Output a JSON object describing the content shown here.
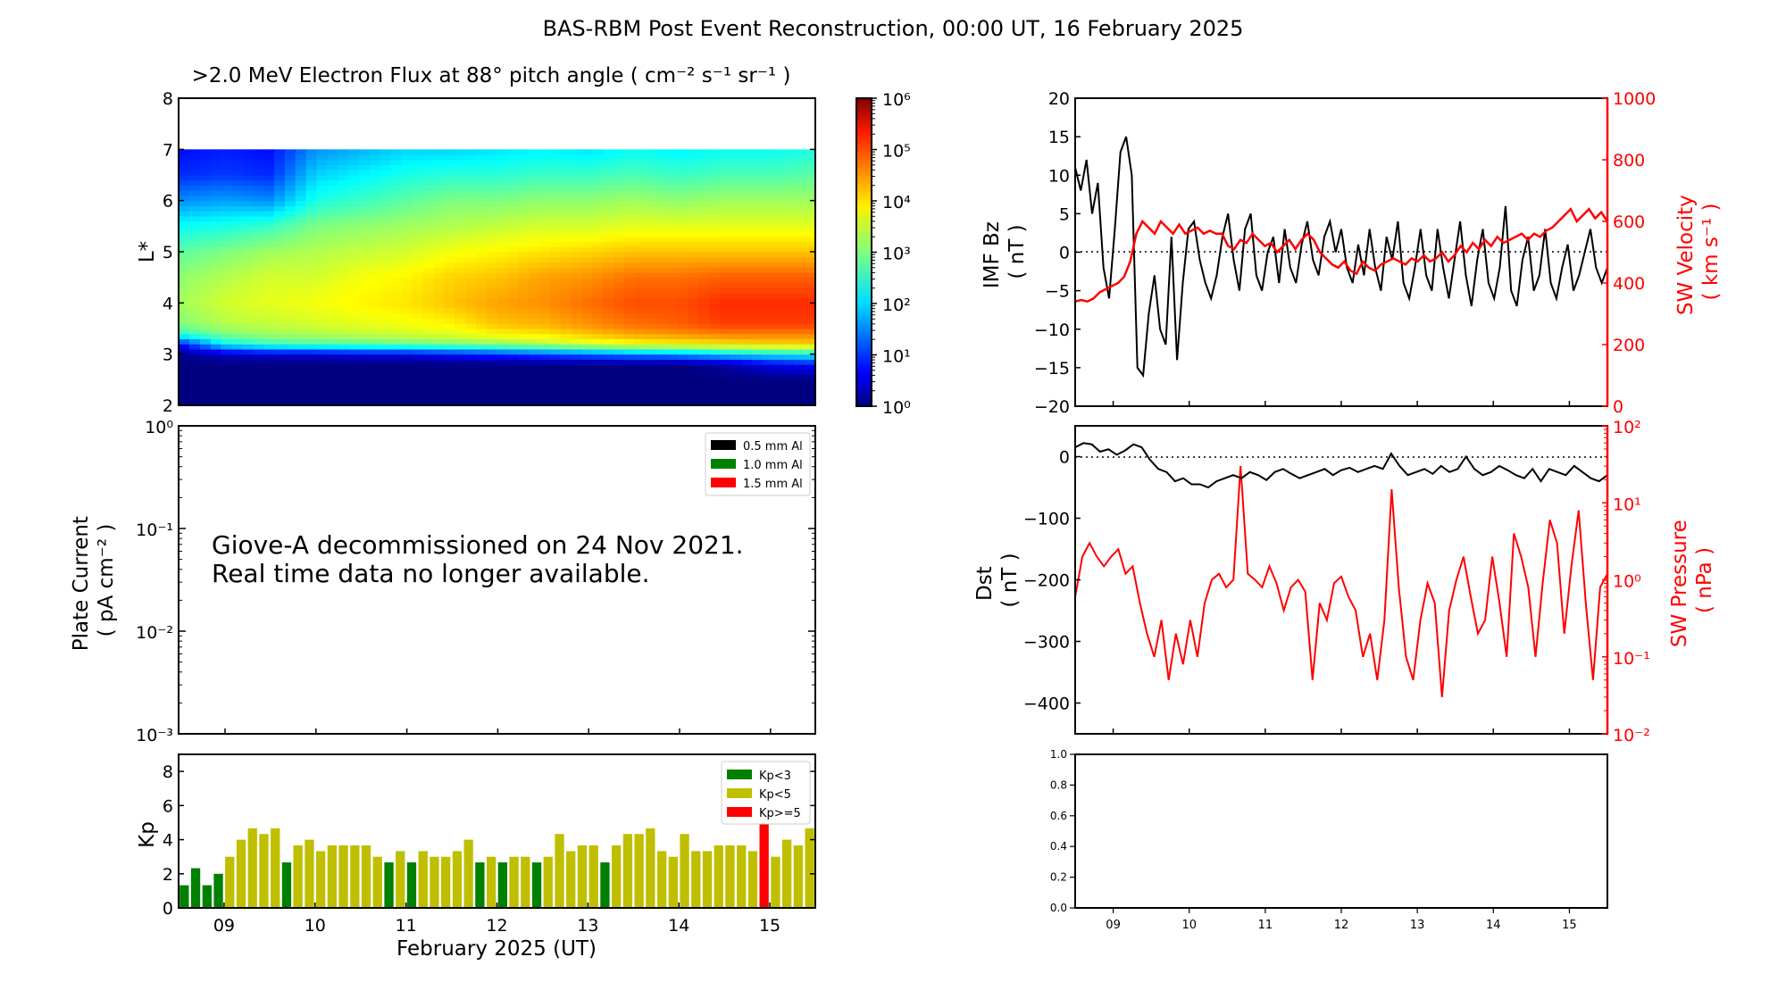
{
  "title": "BAS-RBM Post Event Reconstruction, 00:00 UT, 16 February 2025",
  "chart_data": [
    {
      "id": "flux",
      "type": "heatmap",
      "title": ">2.0 MeV Electron Flux at 88° pitch angle ( cm⁻² s⁻¹ sr⁻¹ )",
      "ylabel": "L*",
      "ylim": [
        2,
        8
      ],
      "yticks": [
        "2",
        "3",
        "4",
        "5",
        "6",
        "7",
        "8"
      ],
      "xlim": [
        "2025-02-08T12:00",
        "2025-02-15T12:00"
      ],
      "colorbar": {
        "scale": "log",
        "range": [
          1,
          1000000
        ],
        "ticks": [
          "10⁰",
          "10¹",
          "10²",
          "10³",
          "10⁴",
          "10⁵",
          "10⁶"
        ],
        "colormap": "jet"
      },
      "l_range_with_data": [
        2,
        7
      ],
      "log10_flux_grid": {
        "time_days_from_start": [
          0,
          0.5,
          1.0,
          1.5,
          2.0,
          2.5,
          3.0,
          3.5,
          4.0,
          4.5,
          5.0,
          5.5,
          6.0,
          6.5,
          7.0
        ],
        "l_star": [
          2.0,
          2.5,
          2.8,
          3.0,
          3.2,
          3.4,
          3.6,
          4.0,
          4.5,
          5.0,
          5.5,
          6.0,
          6.5,
          7.0
        ],
        "rows": [
          [
            0,
            0,
            0,
            0,
            0,
            0,
            0,
            0,
            0,
            0,
            0,
            0,
            0,
            0,
            0
          ],
          [
            0,
            0,
            0,
            0,
            0,
            0,
            0,
            0,
            0,
            0,
            0,
            0,
            0,
            0,
            0
          ],
          [
            0,
            0,
            0,
            0,
            0,
            0,
            0,
            0,
            0,
            0,
            0,
            0,
            0.2,
            0.6,
            0.8
          ],
          [
            0.1,
            0.4,
            0.5,
            0.5,
            0.6,
            0.6,
            0.8,
            1.0,
            1.2,
            1.4,
            1.6,
            1.7,
            2.0,
            2.2,
            2.3
          ],
          [
            0.8,
            2.2,
            2.6,
            2.7,
            2.8,
            2.9,
            3.0,
            3.1,
            3.3,
            3.5,
            3.7,
            3.8,
            3.9,
            4.0,
            4.0
          ],
          [
            2.5,
            3.0,
            3.2,
            3.3,
            3.4,
            3.5,
            3.6,
            3.8,
            3.9,
            4.1,
            4.3,
            4.4,
            4.5,
            4.5,
            4.5
          ],
          [
            3.0,
            3.3,
            3.4,
            3.5,
            3.6,
            3.7,
            3.8,
            4.1,
            4.2,
            4.4,
            4.6,
            4.7,
            4.9,
            4.9,
            4.9
          ],
          [
            3.2,
            3.5,
            3.6,
            3.7,
            3.8,
            3.9,
            4.1,
            4.3,
            4.4,
            4.6,
            4.8,
            4.8,
            5.0,
            5.0,
            5.0
          ],
          [
            3.1,
            3.3,
            3.5,
            3.5,
            3.7,
            3.8,
            4.0,
            4.1,
            4.3,
            4.4,
            4.6,
            4.6,
            4.7,
            4.7,
            4.7
          ],
          [
            2.8,
            3.0,
            3.2,
            3.3,
            3.4,
            3.5,
            3.7,
            3.8,
            3.9,
            4.0,
            4.1,
            4.1,
            4.1,
            4.1,
            4.1
          ],
          [
            2.3,
            2.4,
            2.6,
            3.0,
            3.1,
            3.2,
            3.3,
            3.4,
            3.5,
            3.5,
            3.6,
            3.6,
            3.6,
            3.6,
            3.6
          ],
          [
            1.6,
            1.7,
            1.6,
            2.4,
            2.6,
            2.8,
            3.0,
            3.0,
            3.1,
            3.1,
            3.2,
            3.1,
            3.2,
            3.2,
            3.2
          ],
          [
            1.0,
            1.1,
            1.0,
            2.0,
            2.2,
            2.4,
            2.5,
            2.5,
            2.6,
            2.6,
            2.7,
            2.6,
            2.7,
            2.7,
            2.8
          ],
          [
            0.8,
            0.9,
            0.8,
            1.6,
            1.8,
            2.0,
            2.0,
            2.1,
            2.2,
            2.1,
            2.3,
            2.2,
            2.3,
            2.3,
            2.4
          ]
        ]
      }
    },
    {
      "id": "plate_current",
      "type": "line",
      "ylabel": "Plate Current ( pA cm⁻² )",
      "yscale": "log",
      "ylim": [
        0.001,
        1
      ],
      "yticks": [
        "10⁰",
        "10⁻¹",
        "10⁻²",
        "10⁻³"
      ],
      "legend": {
        "placement": "top-right",
        "entries": [
          {
            "label": "0.5 mm Al",
            "color": "#000000"
          },
          {
            "label": "1.0 mm Al",
            "color": "#008000"
          },
          {
            "label": "1.5 mm Al",
            "color": "#ff0000"
          }
        ]
      },
      "annotation": [
        "Giove-A decommissioned on 24 Nov 2021.",
        "Real time data no longer available."
      ],
      "series": []
    },
    {
      "id": "kp",
      "type": "bar",
      "ylabel": "Kp",
      "xlabel": "February 2025 (UT)",
      "ylim": [
        0,
        9
      ],
      "yticks": [
        "0",
        "2",
        "4",
        "6",
        "8"
      ],
      "xticks": [
        "09",
        "10",
        "11",
        "12",
        "13",
        "14",
        "15"
      ],
      "bar_interval_hours": 3,
      "legend": {
        "placement": "top-right",
        "entries": [
          {
            "label": "Kp<3",
            "color": "#008000"
          },
          {
            "label": "Kp<5",
            "color": "#bfbf00"
          },
          {
            "label": "Kp>=5",
            "color": "#ff0000"
          }
        ]
      },
      "values": [
        1.33,
        2.33,
        1.33,
        2.0,
        3.0,
        4.0,
        4.67,
        4.33,
        4.67,
        2.67,
        3.67,
        4.0,
        3.33,
        3.67,
        3.67,
        3.67,
        3.67,
        3.0,
        2.67,
        3.33,
        2.67,
        3.33,
        3.0,
        3.0,
        3.33,
        4.0,
        2.67,
        3.0,
        2.67,
        3.0,
        3.0,
        2.67,
        3.0,
        4.33,
        3.33,
        3.67,
        3.67,
        2.67,
        3.67,
        4.33,
        4.33,
        4.67,
        3.33,
        3.0,
        4.33,
        3.33,
        3.33,
        3.67,
        3.67,
        3.67,
        3.33,
        5.0,
        3.0,
        4.0,
        3.67,
        4.67
      ]
    },
    {
      "id": "imf_sw",
      "type": "line",
      "ylabel": "IMF Bz ( nT )",
      "ylim": [
        -20,
        20
      ],
      "yticks": [
        "20",
        "15",
        "10",
        "5",
        "0",
        "−5",
        "−10",
        "−15",
        "−20"
      ],
      "y2label": "SW Velocity ( km s⁻¹ )",
      "y2lim": [
        0,
        1000
      ],
      "y2ticks": [
        "1000",
        "800",
        "600",
        "400",
        "200",
        "0"
      ],
      "series": [
        {
          "name": "IMF Bz",
          "color": "#000000",
          "axis": "left",
          "values": [
            11,
            8,
            12,
            5,
            9,
            -2,
            -6,
            3,
            13,
            15,
            10,
            -15,
            -16,
            -8,
            -3,
            -10,
            -12,
            2,
            -14,
            -4,
            3,
            4,
            -1,
            -4,
            -6,
            -3,
            2,
            5,
            -1,
            -5,
            3,
            5,
            -3,
            -5,
            0,
            2,
            -4,
            3,
            -2,
            -4,
            1,
            4,
            -1,
            -3,
            2,
            4,
            0,
            3,
            -2,
            -4,
            1,
            -3,
            3,
            -2,
            -5,
            2,
            -1,
            4,
            -4,
            -6,
            -2,
            3,
            -3,
            -5,
            3,
            -2,
            -6,
            -1,
            4,
            -3,
            -7,
            -1,
            3,
            -4,
            -6,
            -2,
            6,
            -5,
            -7,
            -1,
            2,
            -5,
            -3,
            3,
            -4,
            -6,
            -2,
            1,
            -5,
            -3,
            0,
            3,
            -2,
            -4,
            -2
          ]
        },
        {
          "name": "SW Velocity",
          "color": "#ff0000",
          "axis": "right",
          "values": [
            340,
            345,
            340,
            350,
            370,
            380,
            390,
            400,
            420,
            470,
            560,
            600,
            580,
            560,
            600,
            580,
            560,
            590,
            560,
            570,
            580,
            560,
            570,
            560,
            560,
            520,
            510,
            540,
            530,
            560,
            540,
            520,
            530,
            500,
            520,
            540,
            510,
            540,
            560,
            540,
            500,
            480,
            460,
            450,
            470,
            440,
            430,
            470,
            450,
            440,
            460,
            470,
            480,
            470,
            460,
            480,
            470,
            490,
            470,
            480,
            500,
            470,
            490,
            520,
            500,
            530,
            510,
            540,
            520,
            550,
            530,
            540,
            550,
            560,
            540,
            560,
            550,
            570,
            580,
            600,
            620,
            640,
            600,
            620,
            640,
            610,
            630,
            600
          ]
        }
      ]
    },
    {
      "id": "dst_pressure",
      "type": "line",
      "ylabel": "Dst ( nT )",
      "ylim": [
        -450,
        50
      ],
      "yticks": [
        "0",
        "−100",
        "−200",
        "−300",
        "−400"
      ],
      "y2label": "SW Pressure ( nPa )",
      "y2scale": "log",
      "y2lim": [
        0.01,
        100
      ],
      "y2ticks": [
        "10²",
        "10¹",
        "10⁰",
        "10⁻¹",
        "10⁻²"
      ],
      "series": [
        {
          "name": "Dst",
          "color": "#000000",
          "axis": "left",
          "values": [
            15,
            22,
            20,
            8,
            12,
            3,
            10,
            20,
            15,
            -5,
            -20,
            -25,
            -40,
            -35,
            -45,
            -45,
            -50,
            -40,
            -35,
            -30,
            -35,
            -25,
            -30,
            -38,
            -25,
            -20,
            -28,
            -35,
            -30,
            -25,
            -20,
            -30,
            -22,
            -18,
            -25,
            -20,
            -15,
            -20,
            5,
            -15,
            -30,
            -25,
            -20,
            -28,
            -15,
            -25,
            -20,
            0,
            -20,
            -30,
            -25,
            -15,
            -22,
            -30,
            -35,
            -20,
            -40,
            -20,
            -25,
            -30,
            -15,
            -25,
            -35,
            -40,
            -30
          ]
        },
        {
          "name": "SW Pressure",
          "color": "#ff0000",
          "axis": "right",
          "values": [
            0.6,
            2,
            3,
            2,
            1.5,
            2,
            2.5,
            1.2,
            1.5,
            0.5,
            0.2,
            0.1,
            0.3,
            0.05,
            0.2,
            0.08,
            0.3,
            0.1,
            0.5,
            1,
            1.2,
            0.8,
            1,
            30,
            1.2,
            1,
            0.8,
            1.5,
            0.9,
            0.4,
            0.8,
            1,
            0.7,
            0.05,
            0.5,
            0.3,
            0.9,
            1.1,
            0.6,
            0.4,
            0.1,
            0.2,
            0.05,
            0.3,
            15,
            0.8,
            0.1,
            0.05,
            0.3,
            0.9,
            0.5,
            0.03,
            0.4,
            1,
            2,
            0.6,
            0.2,
            0.3,
            2,
            0.5,
            0.1,
            4,
            2,
            0.8,
            0.1,
            0.9,
            6,
            3,
            0.2,
            1.5,
            8,
            0.5,
            0.05,
            0.8,
            1.2
          ]
        }
      ]
    },
    {
      "id": "empty",
      "type": "line",
      "ylim": [
        0,
        1
      ],
      "yticks": [
        "0.0",
        "0.2",
        "0.4",
        "0.6",
        "0.8",
        "1.0"
      ],
      "xticks": [
        "09",
        "10",
        "11",
        "12",
        "13",
        "14",
        "15"
      ],
      "series": []
    }
  ]
}
